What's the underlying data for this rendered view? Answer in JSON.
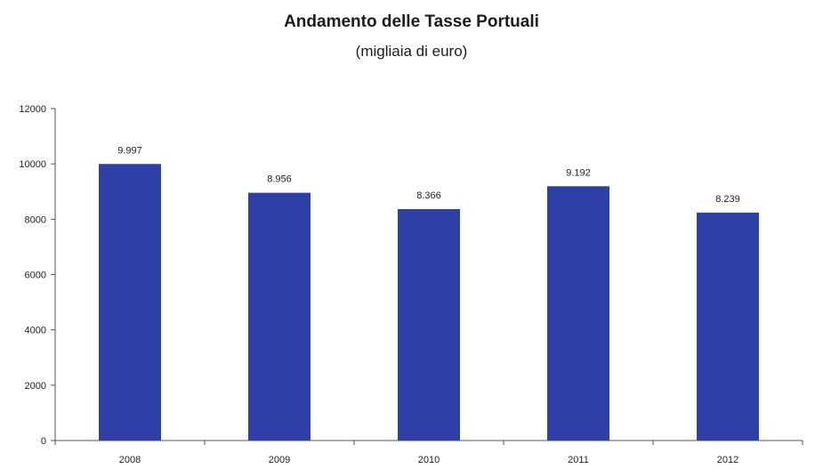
{
  "chart_data": {
    "type": "bar",
    "title": "Andamento delle Tasse Portuali",
    "subtitle": "(migliaia di euro)",
    "categories": [
      "2008",
      "2009",
      "2010",
      "2011",
      "2012"
    ],
    "values": [
      9997,
      8956,
      8366,
      9192,
      8239
    ],
    "data_labels": [
      "9.997",
      "8.956",
      "8.366",
      "9.192",
      "8.239"
    ],
    "ylim": [
      0,
      12000
    ],
    "yticks": [
      0,
      2000,
      4000,
      6000,
      8000,
      10000,
      12000
    ],
    "ytick_labels": [
      "0",
      "2000",
      "4000",
      "6000",
      "8000",
      "10000",
      "12000"
    ],
    "xlabel": "",
    "ylabel": "",
    "grid": false,
    "legend": "none",
    "bar_color": "#2e3fa8"
  }
}
